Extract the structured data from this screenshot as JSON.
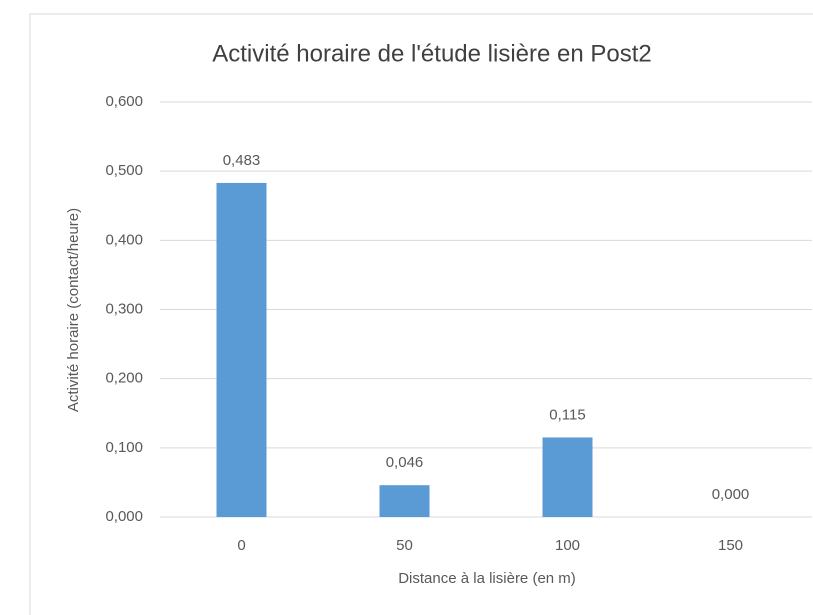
{
  "chart_data": {
    "type": "bar",
    "title": "Activité horaire de l'étude lisière en Post2",
    "x_label": "Distance à la lisière (en m)",
    "y_label": "Activité horaire (contact/heure)",
    "categories": [
      "0",
      "50",
      "100",
      "150"
    ],
    "values": [
      0.483,
      0.046,
      0.115,
      0
    ],
    "value_labels": [
      "0,483",
      "0,046",
      "0,115",
      "0,000"
    ],
    "color": "#5b9bd5",
    "ylim": [
      0,
      0.6
    ],
    "yticks": [
      {
        "value": 0,
        "label": "0,000"
      },
      {
        "value": 0.1,
        "label": "0,100"
      },
      {
        "value": 0.2,
        "label": "0,200"
      },
      {
        "value": 0.3,
        "label": "0,300"
      },
      {
        "value": 0.4,
        "label": "0,400"
      },
      {
        "value": 0.5,
        "label": "0,500"
      },
      {
        "value": 0.6,
        "label": "0,600"
      }
    ],
    "grid": true
  }
}
